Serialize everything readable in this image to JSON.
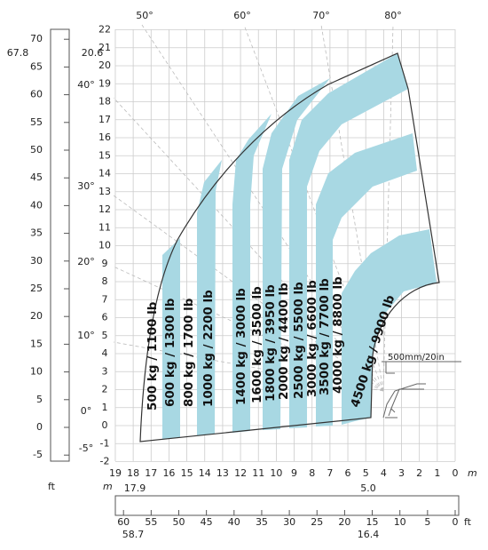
{
  "left_scale": {
    "unit": "ft",
    "ticks": [
      70,
      65,
      60,
      55,
      50,
      45,
      40,
      35,
      30,
      25,
      20,
      15,
      10,
      5,
      0,
      -5
    ],
    "marker": "67.8"
  },
  "angles": {
    "left": [
      "40°",
      "30°",
      "20°",
      "10°",
      "0°",
      "-5°"
    ],
    "top": [
      "50°",
      "60°",
      "70°",
      "80°"
    ],
    "height_marker": "20.6"
  },
  "y_axis": {
    "ticks": [
      22,
      21,
      20,
      19,
      18,
      17,
      16,
      15,
      14,
      13,
      12,
      11,
      10,
      9,
      8,
      7,
      6,
      5,
      4,
      3,
      2,
      1,
      0,
      -1,
      -2
    ]
  },
  "x_axis": {
    "unit": "m",
    "ticks": [
      19,
      18,
      17,
      16,
      15,
      14,
      13,
      12,
      11,
      10,
      9,
      8,
      7,
      6,
      5,
      4,
      3,
      2,
      1,
      0
    ],
    "markers": [
      "17.9",
      "5.0"
    ]
  },
  "bottom_scale": {
    "unit": "ft",
    "ticks": [
      60,
      55,
      50,
      45,
      40,
      35,
      30,
      25,
      20,
      15,
      10,
      5,
      0
    ],
    "markers": [
      "58.7",
      "16.4"
    ]
  },
  "loads": [
    "500 kg / 1100 lb",
    "600 kg / 1300 lb",
    "800 kg / 1700 lb",
    "1000 kg / 2200 lb",
    "1400 kg / 3000 lb",
    "1600 kg / 3500 lb",
    "1800 kg / 3950 lb",
    "2000 kg / 4400 lb",
    "2500 kg / 5500 lb",
    "3000 kg / 6600 lb",
    "3500 kg / 7700 lb",
    "4000 kg / 8800 lb",
    "4500 kg / 9900 lb"
  ],
  "annotation": "500mm/20in"
}
